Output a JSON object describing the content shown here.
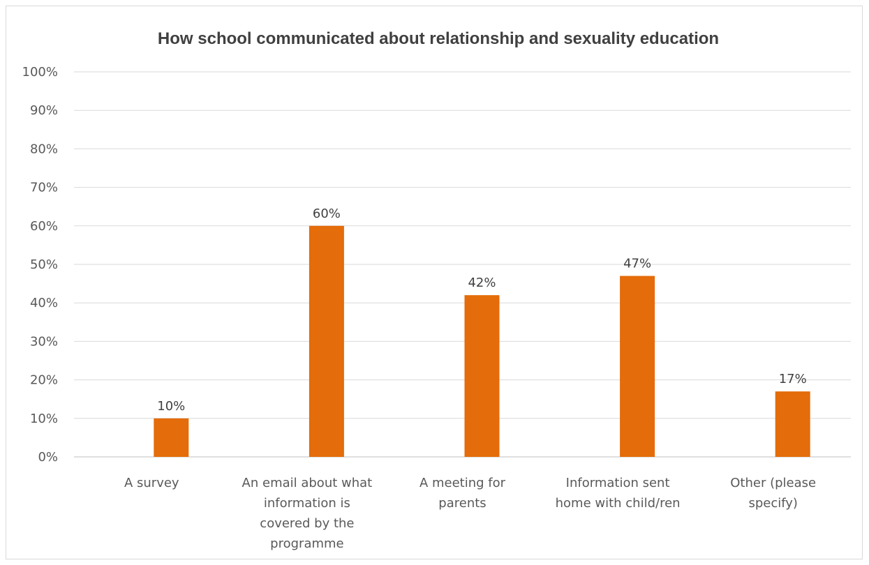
{
  "chart_data": {
    "type": "bar",
    "title": "How school communicated about relationship and sexuality education",
    "xlabel": "",
    "ylabel": "",
    "ylim": [
      0,
      100
    ],
    "yticks": [
      "0%",
      "10%",
      "20%",
      "30%",
      "40%",
      "50%",
      "60%",
      "70%",
      "80%",
      "90%",
      "100%"
    ],
    "categories": [
      "A survey",
      "An email about what information is covered by the programme",
      "A meeting for parents",
      "Information sent home with child/ren",
      "Other (please specify)"
    ],
    "category_lines": [
      [
        "A survey"
      ],
      [
        "An email about what",
        "information is",
        "covered by the",
        "programme"
      ],
      [
        "A meeting for",
        "parents"
      ],
      [
        "Information sent",
        "home with child/ren"
      ],
      [
        "Other (please",
        "specify)"
      ]
    ],
    "values": [
      10,
      60,
      42,
      47,
      17
    ],
    "data_labels": [
      "10%",
      "60%",
      "42%",
      "47%",
      "17%"
    ],
    "bar_color": "#E46C0A",
    "grid": true,
    "legend": "none"
  }
}
